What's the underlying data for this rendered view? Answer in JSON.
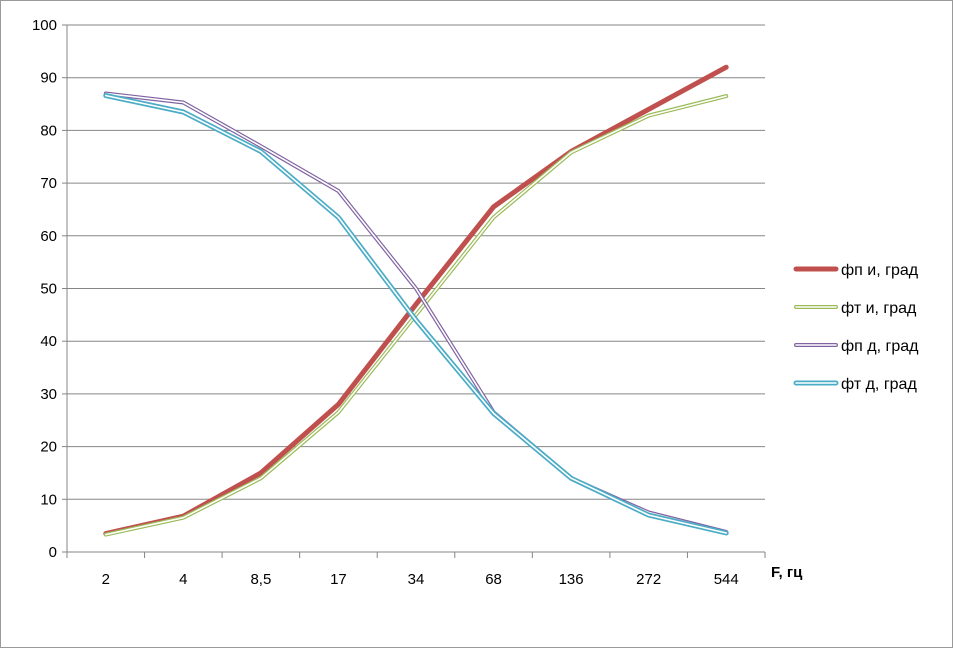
{
  "chart_data": {
    "type": "line",
    "categories": [
      "2",
      "4",
      "8,5",
      "17",
      "34",
      "68",
      "136",
      "272",
      "544"
    ],
    "xlabel": "F, гц",
    "ylabel": "",
    "ylim": [
      0,
      100
    ],
    "yticks": [
      0,
      10,
      20,
      30,
      40,
      50,
      60,
      70,
      80,
      90,
      100
    ],
    "grid": true,
    "legend_position": "right",
    "series": [
      {
        "name": "фп и, град",
        "color": "#c0504d",
        "style": "thick",
        "values": [
          3.5,
          6.8,
          15,
          28,
          47,
          65.5,
          76,
          84,
          92
        ]
      },
      {
        "name": "фт и, град",
        "color": "#9bbb59",
        "style": "double",
        "values": [
          3.3,
          6.5,
          14,
          26.5,
          45,
          63.5,
          75.8,
          82.8,
          86.5
        ]
      },
      {
        "name": "фп д, град",
        "color": "#8064a2",
        "style": "double",
        "values": [
          87,
          85.3,
          77,
          68.5,
          50,
          26.5,
          14,
          7.5,
          3.8
        ]
      },
      {
        "name": "фт д, град",
        "color": "#4bacc6",
        "style": "double-thick",
        "values": [
          86.6,
          83.5,
          76,
          63.5,
          44,
          26.3,
          14,
          7,
          3.6
        ]
      }
    ]
  }
}
